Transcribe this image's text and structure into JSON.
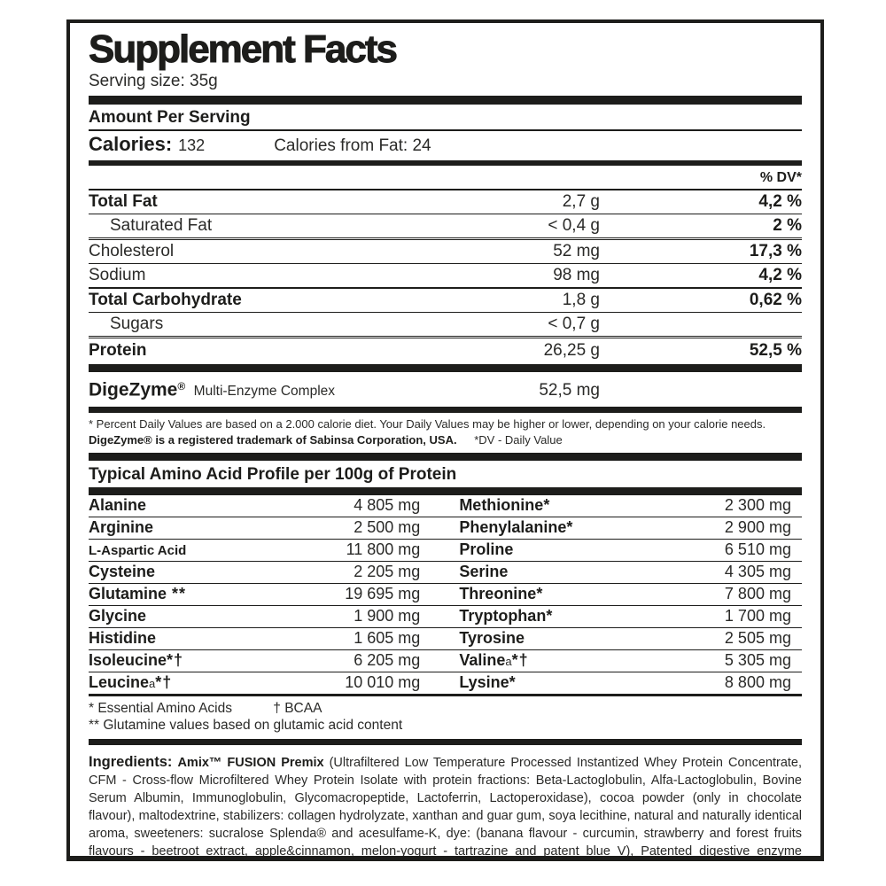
{
  "colors": {
    "text": "#1d1d1b",
    "line": "#1d1d1b",
    "background": "#ffffff"
  },
  "panel": {
    "title": "Supplement Facts",
    "serving_size": "Serving size: 35g",
    "amount_per_serving": "Amount Per Serving",
    "calories_label": "Calories:",
    "calories_value": "132",
    "calories_from_fat": "Calories from Fat: 24",
    "dv_header": "% DV*"
  },
  "nutrition": {
    "rows": [
      {
        "label": "Total Fat",
        "amount": "2,7 g",
        "dv": "4,2 %"
      },
      {
        "label": "Saturated Fat",
        "amount": "< 0,4 g",
        "dv": "2 %"
      },
      {
        "label": "Cholesterol",
        "amount": "52 mg",
        "dv": "17,3 %"
      },
      {
        "label": "Sodium",
        "amount": "98 mg",
        "dv": "4,2 %"
      },
      {
        "label": "Total Carbohydrate",
        "amount": "1,8 g",
        "dv": "0,62 %"
      },
      {
        "label": "Sugars",
        "amount": "< 0,7 g",
        "dv": ""
      },
      {
        "label": "Protein",
        "amount": "26,25 g",
        "dv": "52,5 %"
      }
    ],
    "digezyme": {
      "brand": "DigeZyme",
      "reg": "®",
      "desc": "Multi-Enzyme Complex",
      "amount": "52,5 mg"
    }
  },
  "footnotes": {
    "daily_values": "* Percent Daily Values are based on a 2.000 calorie diet. Your Daily Values may be higher or lower, depending on your calorie needs.",
    "trademark": "DigeZyme® is a registered trademark of Sabinsa Corporation, USA.",
    "dv_note": "*DV - Daily Value"
  },
  "amino": {
    "heading": "Typical Amino Acid Profile per 100g of Protein",
    "left": [
      {
        "name": "Alanine",
        "sub": "",
        "marks": "",
        "value": "4 805 mg"
      },
      {
        "name": "Arginine",
        "sub": "",
        "marks": "",
        "value": "2 500 mg"
      },
      {
        "name": "L-Aspartic Acid",
        "sub": "",
        "marks": "",
        "value": "11 800 mg"
      },
      {
        "name": "Cysteine",
        "sub": "",
        "marks": "",
        "value": "2 205 mg"
      },
      {
        "name": "Glutamine",
        "sub": "",
        "marks": " **",
        "value": "19 695 mg"
      },
      {
        "name": "Glycine",
        "sub": "",
        "marks": "",
        "value": "1 900 mg"
      },
      {
        "name": "Histidine",
        "sub": "",
        "marks": "",
        "value": "1 605 mg"
      },
      {
        "name": "Isoleucine",
        "sub": "",
        "marks": "*†",
        "value": "6 205 mg"
      },
      {
        "name": "Leucine",
        "sub": "a",
        "marks": "*†",
        "value": "10 010 mg"
      }
    ],
    "right": [
      {
        "name": "Methionine",
        "sub": "",
        "marks": "*",
        "value": "2 300 mg"
      },
      {
        "name": "Phenylalanine",
        "sub": "",
        "marks": "*",
        "value": "2 900 mg"
      },
      {
        "name": "Proline",
        "sub": "",
        "marks": "",
        "value": "6 510 mg"
      },
      {
        "name": "Serine",
        "sub": "",
        "marks": "",
        "value": "4 305 mg"
      },
      {
        "name": "Threonine",
        "sub": "",
        "marks": "*",
        "value": "7 800 mg"
      },
      {
        "name": "Tryptophan",
        "sub": "",
        "marks": "*",
        "value": "1 700 mg"
      },
      {
        "name": "Tyrosine",
        "sub": "",
        "marks": "",
        "value": "2 505 mg"
      },
      {
        "name": "Valine",
        "sub": "a",
        "marks": "*†",
        "value": "5 305 mg"
      },
      {
        "name": "Lysine",
        "sub": "",
        "marks": "*",
        "value": "8 800 mg"
      }
    ],
    "note_essential": "* Essential Amino Acids",
    "note_bcaa": "† BCAA",
    "note_glutamine": "** Glutamine values based on glutamic acid content"
  },
  "ingredients": {
    "label": "Ingredients:",
    "premix": "Amix™ FUSION Premix",
    "body": "(Ultrafiltered Low Temperature Processed Instantized Whey Protein Concentrate, CFM - Cross-flow Microfiltered Whey Protein Isolate with protein fractions: Beta-Lactoglobulin, Alfa-Lactoglobulin, Bovine Serum Albumin, Immunoglobulin, Glycomacropeptide, Lactoferrin, Lactoperoxidase), cocoa powder (only in chocolate flavour), maltodextrine, stabilizers: collagen hydrolyzate, xanthan and guar gum, soya lecithine, natural and naturally identical aroma, sweeteners: sucralose Splenda® and acesulfame-K, dye: (banana flavour - curcumin, strawberry and forest fruits flavours - beetroot extract, apple&cinnamon, melon-yogurt - tartrazine and patent blue V), Patented digestive enzyme DigeZyme® - multi- -enzyme complex (Amylase, Lipase, Lactase, Cellulase, Bacterial neutral protease"
  }
}
